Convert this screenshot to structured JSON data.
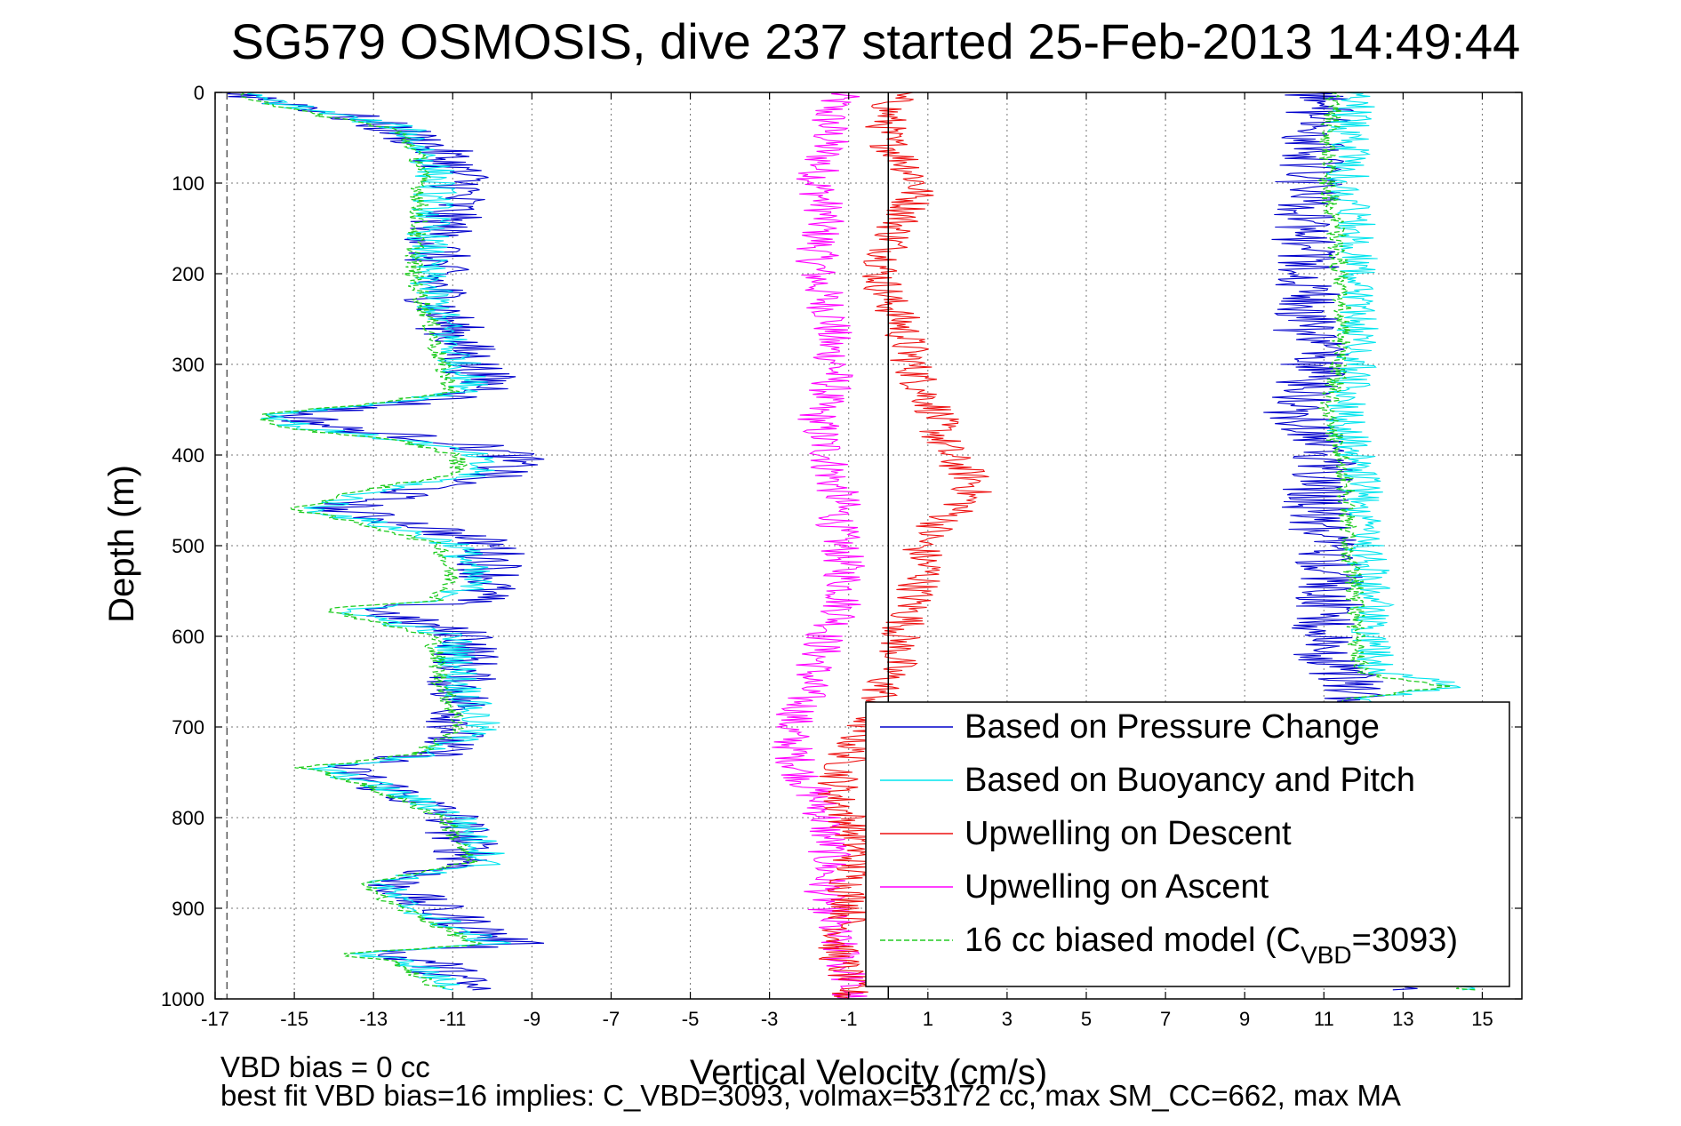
{
  "chart_data": {
    "type": "line",
    "title": "SG579 OSMOSIS, dive 237 started 25-Feb-2013 14:49:44",
    "xlabel": "Vertical Velocity (cm/s)",
    "ylabel": "Depth (m)",
    "xlim": [
      -17,
      16
    ],
    "ylim": [
      1000,
      0
    ],
    "y_reversed": true,
    "grid": true,
    "legend_position": "lower-right",
    "x_ticks": [
      "-17",
      "-15",
      "-13",
      "-11",
      "-9",
      "-7",
      "-5",
      "-3",
      "-1",
      "1",
      "3",
      "5",
      "7",
      "9",
      "11",
      "13",
      "15"
    ],
    "y_ticks": [
      "0",
      "100",
      "200",
      "300",
      "400",
      "500",
      "600",
      "700",
      "800",
      "900",
      "1000"
    ],
    "reference_lines": [
      {
        "orientation": "vertical",
        "x": 0,
        "style": "solid",
        "color": "#000000"
      },
      {
        "orientation": "vertical",
        "x": -16.7,
        "style": "dashed",
        "color": "#555555"
      }
    ],
    "series": [
      {
        "name": "Based on Pressure Change",
        "color": "#0000cc",
        "dash": false,
        "descent": {
          "depth": [
            0,
            20,
            40,
            60,
            80,
            100,
            150,
            200,
            250,
            300,
            330,
            345,
            355,
            370,
            385,
            400,
            420,
            440,
            460,
            480,
            500,
            540,
            560,
            570,
            585,
            600,
            650,
            700,
            730,
            745,
            760,
            800,
            850,
            870,
            890,
            910,
            940,
            950,
            960,
            990
          ],
          "v": [
            -16.5,
            -14.2,
            -12.5,
            -11.5,
            -11.0,
            -10.7,
            -11.3,
            -11.5,
            -11.2,
            -10.5,
            -10.0,
            -12.5,
            -15.0,
            -14.0,
            -11.0,
            -9.5,
            -9.8,
            -12.0,
            -14.0,
            -11.5,
            -10.0,
            -10.0,
            -10.5,
            -13.0,
            -12.0,
            -10.5,
            -10.8,
            -10.8,
            -11.5,
            -14.0,
            -13.0,
            -11.0,
            -10.5,
            -12.5,
            -12.0,
            -11.0,
            -9.5,
            -13.0,
            -11.5,
            -10.5
          ]
        },
        "ascent": {
          "depth": [
            990,
            950,
            900,
            850,
            800,
            750,
            700,
            670,
            650,
            620,
            600,
            550,
            500,
            450,
            400,
            370,
            350,
            300,
            250,
            200,
            150,
            100,
            50,
            10,
            0
          ],
          "v": [
            13.0,
            11.7,
            11.5,
            11.3,
            11.3,
            11.2,
            11.4,
            11.7,
            11.8,
            10.8,
            11.0,
            11.2,
            11.0,
            10.8,
            11.0,
            10.5,
            10.2,
            10.8,
            10.5,
            10.6,
            10.5,
            10.6,
            10.7,
            11.0,
            10.8
          ]
        }
      },
      {
        "name": "Based on Buoyancy and Pitch",
        "color": "#00e5ee",
        "dash": false,
        "descent": {
          "depth": [
            0,
            20,
            40,
            60,
            80,
            100,
            150,
            200,
            250,
            300,
            330,
            345,
            355,
            370,
            385,
            400,
            420,
            440,
            460,
            480,
            500,
            540,
            560,
            570,
            585,
            600,
            650,
            700,
            730,
            745,
            760,
            800,
            850,
            870,
            890,
            910,
            940,
            950,
            960,
            990
          ],
          "v": [
            -16.5,
            -14.5,
            -12.2,
            -11.8,
            -11.5,
            -11.4,
            -11.6,
            -11.7,
            -11.3,
            -10.8,
            -10.5,
            -13.0,
            -15.5,
            -14.8,
            -12.0,
            -10.5,
            -10.3,
            -13.0,
            -14.5,
            -12.5,
            -10.8,
            -10.5,
            -11.0,
            -13.8,
            -12.5,
            -11.0,
            -10.8,
            -10.3,
            -11.5,
            -14.5,
            -13.2,
            -10.8,
            -10.0,
            -12.8,
            -12.5,
            -11.5,
            -10.0,
            -13.5,
            -12.0,
            -11.0
          ]
        },
        "ascent": {
          "depth": [
            990,
            950,
            900,
            850,
            800,
            750,
            700,
            670,
            655,
            640,
            600,
            550,
            500,
            450,
            400,
            370,
            350,
            300,
            250,
            200,
            150,
            100,
            50,
            10,
            0
          ],
          "v": [
            15.0,
            12.2,
            12.0,
            12.0,
            12.0,
            11.8,
            11.8,
            12.0,
            14.5,
            12.3,
            12.2,
            12.2,
            12.0,
            12.0,
            11.8,
            11.6,
            11.5,
            11.8,
            11.9,
            11.9,
            11.8,
            11.6,
            11.6,
            11.8,
            11.5
          ]
        }
      },
      {
        "name": "Upwelling on Descent",
        "color": "#ee1111",
        "dash": false,
        "depth": [
          0,
          20,
          50,
          80,
          100,
          130,
          150,
          180,
          200,
          230,
          250,
          280,
          300,
          330,
          350,
          380,
          400,
          430,
          450,
          480,
          500,
          530,
          550,
          580,
          600,
          630,
          650,
          680,
          700,
          730,
          750,
          780,
          800,
          830,
          850,
          880,
          900,
          930,
          950,
          980,
          1000
        ],
        "v": [
          0.2,
          0.0,
          -0.1,
          0.5,
          0.8,
          0.5,
          0.2,
          0.0,
          -0.2,
          0.0,
          0.3,
          0.5,
          0.6,
          0.9,
          1.2,
          1.3,
          1.5,
          2.2,
          2.0,
          1.2,
          0.8,
          1.0,
          0.7,
          0.5,
          0.3,
          0.2,
          -0.1,
          -0.3,
          -0.6,
          -1.0,
          -1.2,
          -1.3,
          -1.0,
          -0.8,
          -0.9,
          -1.0,
          -0.9,
          -1.2,
          -1.3,
          -1.0,
          -1.0
        ]
      },
      {
        "name": "Upwelling on Ascent",
        "color": "#ff00ff",
        "dash": false,
        "depth": [
          0,
          20,
          50,
          80,
          100,
          130,
          150,
          180,
          200,
          230,
          250,
          280,
          300,
          330,
          350,
          380,
          400,
          430,
          450,
          480,
          500,
          530,
          550,
          580,
          600,
          630,
          650,
          680,
          700,
          730,
          750,
          780,
          800,
          830,
          850,
          880,
          900,
          930,
          950,
          980,
          1000
        ],
        "v": [
          -1.2,
          -1.5,
          -1.5,
          -1.7,
          -1.8,
          -1.6,
          -1.7,
          -1.8,
          -1.8,
          -1.6,
          -1.4,
          -1.5,
          -1.3,
          -1.5,
          -1.8,
          -1.7,
          -1.5,
          -1.4,
          -1.2,
          -1.3,
          -1.2,
          -1.1,
          -1.1,
          -1.2,
          -1.6,
          -1.8,
          -2.0,
          -2.2,
          -2.5,
          -2.4,
          -2.2,
          -1.8,
          -1.6,
          -1.5,
          -1.5,
          -1.6,
          -1.5,
          -1.4,
          -1.2,
          -1.0,
          -1.0
        ]
      },
      {
        "name": "16 cc biased model (C_VBD=3093)",
        "legend_main": "16 cc biased model (C",
        "legend_sub": "VBD",
        "legend_tail": "=3093)",
        "color": "#22cc22",
        "dash": true,
        "descent": {
          "depth": [
            0,
            20,
            40,
            60,
            80,
            100,
            150,
            200,
            250,
            300,
            330,
            345,
            355,
            370,
            385,
            400,
            420,
            440,
            460,
            480,
            500,
            540,
            560,
            570,
            585,
            600,
            650,
            700,
            730,
            745,
            760,
            800,
            850,
            870,
            890,
            910,
            940,
            950,
            960,
            990
          ],
          "v": [
            -16.5,
            -15.0,
            -12.5,
            -12.0,
            -11.8,
            -11.8,
            -11.9,
            -12.0,
            -11.6,
            -11.3,
            -11.0,
            -13.3,
            -16.0,
            -15.2,
            -12.3,
            -10.9,
            -10.8,
            -13.4,
            -15.0,
            -12.9,
            -11.3,
            -11.0,
            -11.4,
            -14.2,
            -12.9,
            -11.5,
            -11.3,
            -10.8,
            -11.9,
            -14.8,
            -13.5,
            -11.2,
            -10.6,
            -13.1,
            -12.8,
            -11.8,
            -10.4,
            -13.9,
            -12.4,
            -11.3
          ]
        },
        "ascent": {
          "depth": [
            990,
            950,
            900,
            850,
            800,
            750,
            700,
            670,
            655,
            640,
            600,
            550,
            500,
            450,
            400,
            370,
            350,
            300,
            250,
            200,
            150,
            100,
            50,
            10,
            0
          ],
          "v": [
            14.6,
            11.7,
            11.6,
            11.6,
            11.6,
            11.4,
            11.4,
            11.6,
            14.1,
            11.9,
            11.8,
            11.8,
            11.6,
            11.6,
            11.4,
            11.2,
            11.1,
            11.4,
            11.5,
            11.4,
            11.3,
            11.1,
            11.1,
            11.3,
            11.1
          ]
        }
      }
    ],
    "annotations": [
      "VBD bias = 0 cc",
      "best fit VBD bias=16 implies: C_VBD=3093, volmax=53172 cc, max SM_CC=662, max MA"
    ]
  }
}
